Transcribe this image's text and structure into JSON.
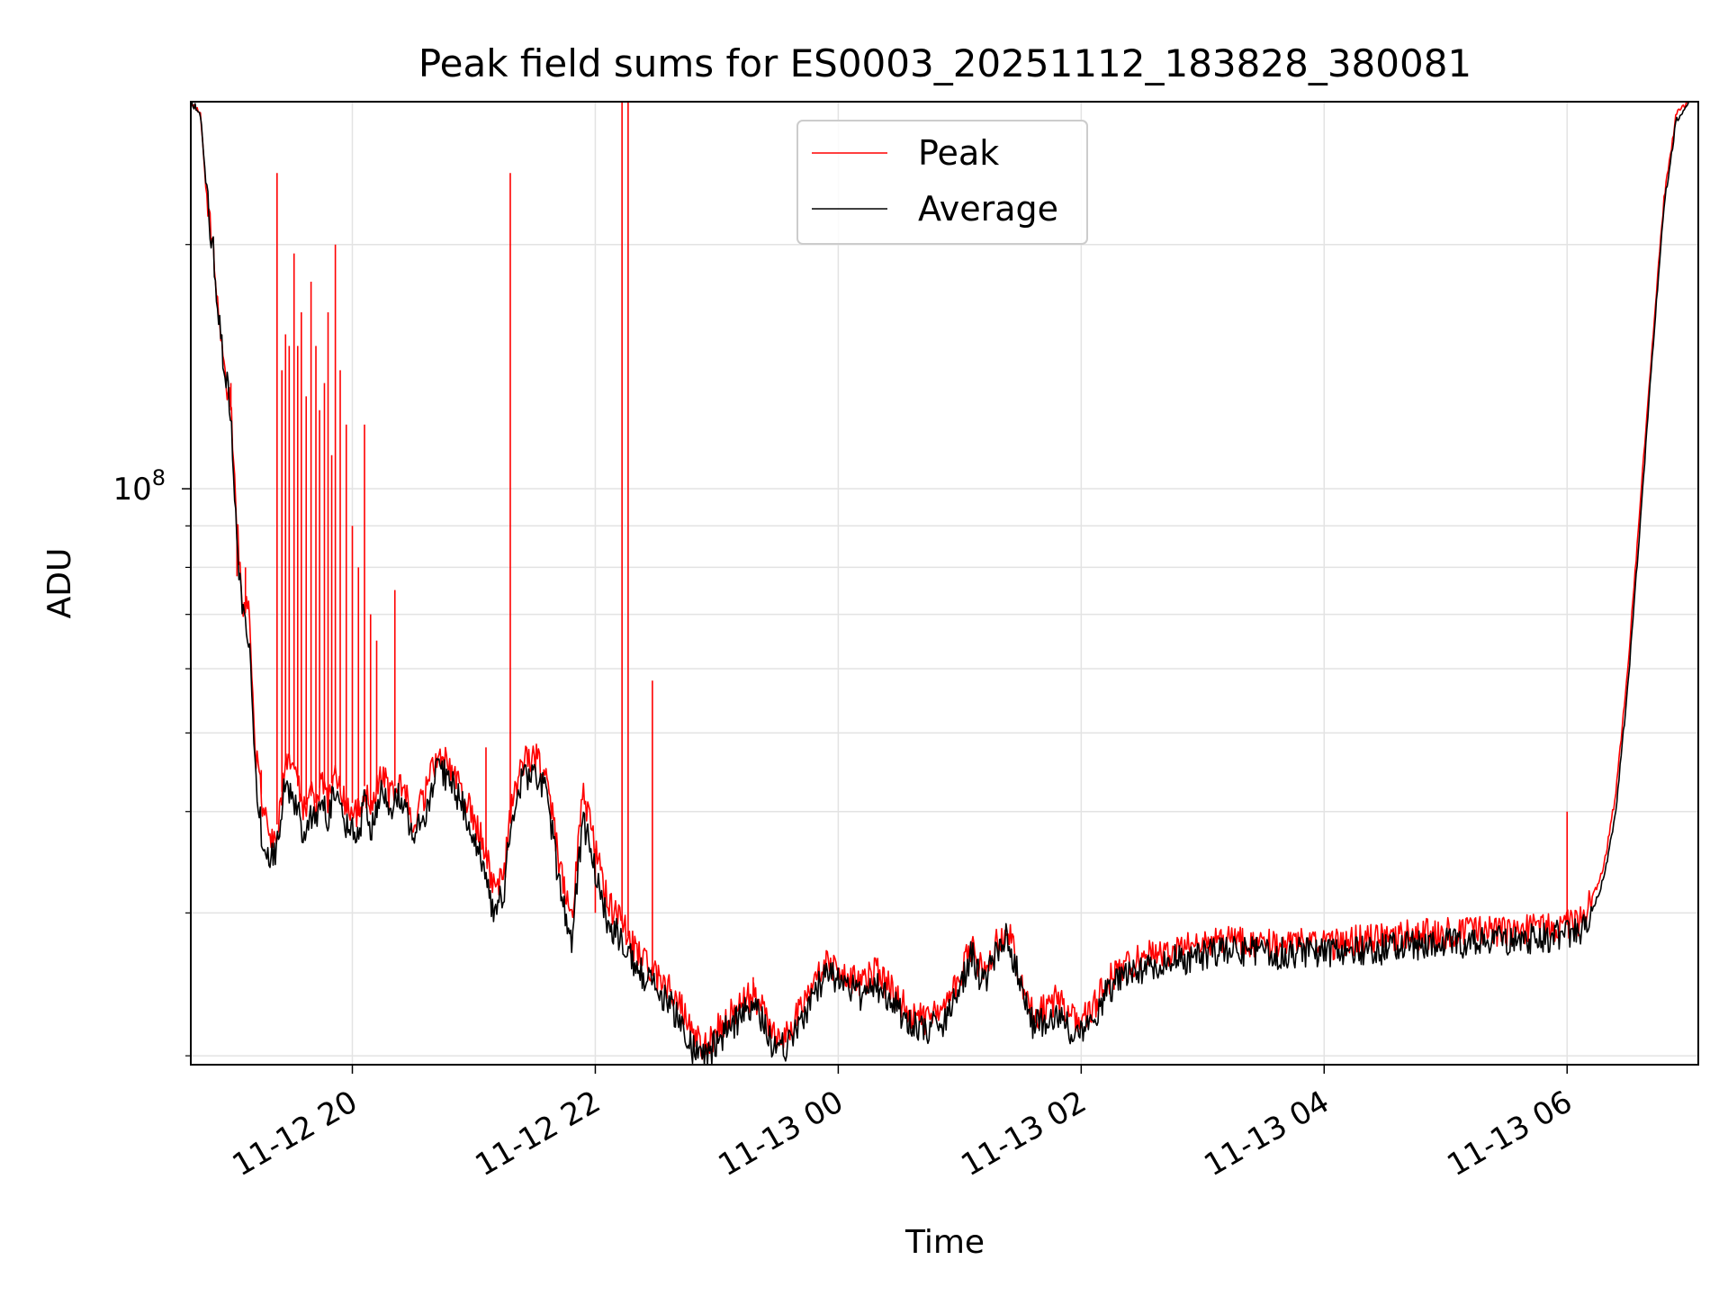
{
  "chart_data": {
    "type": "line",
    "title": "Peak field sums for ES0003_20251112_183828_380081",
    "xlabel": "Time",
    "ylabel": "ADU",
    "yscale": "log",
    "grid": true,
    "legend_position": "top-center",
    "xlim_hours": [
      18.67,
      31.08
    ],
    "ylim": [
      19500000,
      300000000
    ],
    "x_ticks": [
      {
        "hour": 20,
        "label": "11-12 20"
      },
      {
        "hour": 22,
        "label": "11-12 22"
      },
      {
        "hour": 24,
        "label": "11-13 00"
      },
      {
        "hour": 26,
        "label": "11-13 02"
      },
      {
        "hour": 28,
        "label": "11-13 04"
      },
      {
        "hour": 30,
        "label": "11-13 06"
      }
    ],
    "y_major_ticks": [
      {
        "value": 100000000,
        "base": "10",
        "exp": "8"
      }
    ],
    "y_minor_ticks": [
      20000000,
      30000000,
      40000000,
      50000000,
      60000000,
      70000000,
      80000000,
      90000000,
      200000000
    ],
    "series": [
      {
        "name": "Peak",
        "color": "#ff0000",
        "points": [
          [
            18.67,
            300000000
          ],
          [
            18.75,
            290000000
          ],
          [
            18.8,
            230000000
          ],
          [
            18.85,
            200000000
          ],
          [
            18.9,
            160000000
          ],
          [
            18.95,
            140000000
          ],
          [
            19.0,
            125000000
          ],
          [
            19.05,
            90000000
          ],
          [
            19.1,
            72000000
          ],
          [
            19.15,
            70000000
          ],
          [
            19.2,
            48000000
          ],
          [
            19.25,
            42000000
          ],
          [
            19.3,
            38000000
          ],
          [
            19.35,
            36500000
          ],
          [
            19.4,
            40000000
          ],
          [
            19.45,
            46000000
          ],
          [
            19.5,
            47000000
          ],
          [
            19.55,
            43000000
          ],
          [
            19.6,
            40000000
          ],
          [
            19.65,
            42000000
          ],
          [
            19.7,
            41000000
          ],
          [
            19.75,
            44000000
          ],
          [
            19.8,
            41000000
          ],
          [
            19.85,
            45000000
          ],
          [
            19.9,
            43000000
          ],
          [
            19.95,
            40000000
          ],
          [
            20.0,
            41000000
          ],
          [
            20.05,
            39500000
          ],
          [
            20.1,
            43000000
          ],
          [
            20.15,
            40000000
          ],
          [
            20.25,
            45000000
          ],
          [
            20.3,
            42000000
          ],
          [
            20.4,
            44000000
          ],
          [
            20.5,
            39000000
          ],
          [
            20.6,
            42000000
          ],
          [
            20.7,
            47000000
          ],
          [
            20.8,
            46000000
          ],
          [
            20.9,
            43000000
          ],
          [
            21.0,
            39000000
          ],
          [
            21.1,
            36000000
          ],
          [
            21.15,
            32000000
          ],
          [
            21.25,
            33500000
          ],
          [
            21.3,
            40000000
          ],
          [
            21.4,
            46000000
          ],
          [
            21.5,
            47000000
          ],
          [
            21.6,
            44000000
          ],
          [
            21.7,
            35000000
          ],
          [
            21.8,
            29000000
          ],
          [
            21.9,
            42000000
          ],
          [
            22.0,
            36000000
          ],
          [
            22.1,
            31000000
          ],
          [
            22.2,
            29500000
          ],
          [
            22.3,
            27500000
          ],
          [
            22.45,
            25500000
          ],
          [
            22.6,
            24500000
          ],
          [
            22.7,
            23000000
          ],
          [
            22.8,
            21500000
          ],
          [
            22.9,
            20500000
          ],
          [
            23.0,
            21500000
          ],
          [
            23.1,
            22500000
          ],
          [
            23.2,
            23000000
          ],
          [
            23.3,
            24000000
          ],
          [
            23.4,
            22500000
          ],
          [
            23.5,
            21000000
          ],
          [
            23.6,
            21500000
          ],
          [
            23.7,
            23000000
          ],
          [
            23.8,
            24500000
          ],
          [
            23.9,
            26000000
          ],
          [
            24.0,
            25500000
          ],
          [
            24.1,
            25000000
          ],
          [
            24.2,
            24500000
          ],
          [
            24.3,
            25500000
          ],
          [
            24.4,
            24500000
          ],
          [
            24.5,
            23500000
          ],
          [
            24.6,
            22500000
          ],
          [
            24.7,
            22200000
          ],
          [
            24.8,
            22500000
          ],
          [
            24.9,
            23000000
          ],
          [
            25.0,
            25000000
          ],
          [
            25.1,
            27500000
          ],
          [
            25.2,
            25000000
          ],
          [
            25.3,
            27500000
          ],
          [
            25.4,
            29000000
          ],
          [
            25.5,
            25000000
          ],
          [
            25.6,
            22500000
          ],
          [
            25.7,
            22800000
          ],
          [
            25.8,
            23500000
          ],
          [
            25.9,
            22500000
          ],
          [
            26.0,
            22000000
          ],
          [
            26.1,
            23000000
          ],
          [
            26.2,
            24500000
          ],
          [
            26.3,
            25500000
          ],
          [
            26.5,
            26500000
          ],
          [
            26.7,
            27000000
          ],
          [
            26.9,
            27200000
          ],
          [
            27.1,
            27600000
          ],
          [
            27.3,
            27800000
          ],
          [
            27.5,
            27500000
          ],
          [
            27.7,
            27600000
          ],
          [
            27.9,
            27600000
          ],
          [
            28.1,
            27500000
          ],
          [
            28.3,
            27800000
          ],
          [
            28.5,
            27900000
          ],
          [
            28.7,
            28200000
          ],
          [
            28.9,
            28300000
          ],
          [
            29.1,
            28400000
          ],
          [
            29.3,
            28500000
          ],
          [
            29.5,
            28600000
          ],
          [
            29.7,
            28700000
          ],
          [
            29.9,
            28900000
          ],
          [
            30.0,
            29000000
          ],
          [
            30.1,
            29200000
          ],
          [
            30.2,
            31000000
          ],
          [
            30.3,
            34000000
          ],
          [
            30.4,
            42000000
          ],
          [
            30.5,
            60000000
          ],
          [
            30.6,
            95000000
          ],
          [
            30.7,
            150000000
          ],
          [
            30.8,
            230000000
          ],
          [
            30.9,
            290000000
          ],
          [
            31.0,
            300000000
          ]
        ],
        "spikes": [
          [
            19.0,
            135000000
          ],
          [
            19.05,
            78000000
          ],
          [
            19.12,
            80000000
          ],
          [
            19.25,
            45000000
          ],
          [
            19.38,
            245000000
          ],
          [
            19.42,
            140000000
          ],
          [
            19.45,
            155000000
          ],
          [
            19.48,
            150000000
          ],
          [
            19.52,
            195000000
          ],
          [
            19.55,
            150000000
          ],
          [
            19.58,
            165000000
          ],
          [
            19.62,
            130000000
          ],
          [
            19.66,
            180000000
          ],
          [
            19.7,
            150000000
          ],
          [
            19.73,
            125000000
          ],
          [
            19.77,
            135000000
          ],
          [
            19.8,
            165000000
          ],
          [
            19.83,
            110000000
          ],
          [
            19.86,
            200000000
          ],
          [
            19.9,
            140000000
          ],
          [
            19.95,
            120000000
          ],
          [
            20.0,
            90000000
          ],
          [
            20.05,
            80000000
          ],
          [
            20.1,
            120000000
          ],
          [
            20.15,
            70000000
          ],
          [
            20.2,
            65000000
          ],
          [
            20.35,
            75000000
          ],
          [
            21.1,
            48000000
          ],
          [
            21.3,
            245000000
          ],
          [
            22.0,
            30000000
          ],
          [
            22.22,
            320000000
          ],
          [
            22.27,
            320000000
          ],
          [
            22.47,
            58000000
          ],
          [
            23.3,
            25000000
          ],
          [
            26.3,
            26000000
          ],
          [
            30.0,
            40000000
          ]
        ]
      },
      {
        "name": "Average",
        "color": "#000000",
        "points": [
          [
            18.67,
            300000000
          ],
          [
            18.75,
            290000000
          ],
          [
            18.8,
            230000000
          ],
          [
            18.85,
            200000000
          ],
          [
            18.9,
            160000000
          ],
          [
            18.95,
            140000000
          ],
          [
            19.0,
            125000000
          ],
          [
            19.05,
            85000000
          ],
          [
            19.1,
            70000000
          ],
          [
            19.15,
            65000000
          ],
          [
            19.2,
            45000000
          ],
          [
            19.25,
            38000000
          ],
          [
            19.3,
            36000000
          ],
          [
            19.35,
            35000000
          ],
          [
            19.4,
            38000000
          ],
          [
            19.45,
            44000000
          ],
          [
            19.5,
            42000000
          ],
          [
            19.55,
            40000000
          ],
          [
            19.6,
            37000000
          ],
          [
            19.65,
            40000000
          ],
          [
            19.7,
            38500000
          ],
          [
            19.75,
            42000000
          ],
          [
            19.8,
            39000000
          ],
          [
            19.85,
            43000000
          ],
          [
            19.9,
            40000000
          ],
          [
            19.95,
            38500000
          ],
          [
            20.0,
            39000000
          ],
          [
            20.05,
            37000000
          ],
          [
            20.1,
            41000000
          ],
          [
            20.15,
            38000000
          ],
          [
            20.25,
            43000000
          ],
          [
            20.3,
            40000000
          ],
          [
            20.4,
            42000000
          ],
          [
            20.5,
            37000000
          ],
          [
            20.6,
            40000000
          ],
          [
            20.7,
            45000000
          ],
          [
            20.8,
            44000000
          ],
          [
            20.9,
            41000000
          ],
          [
            21.0,
            36500000
          ],
          [
            21.1,
            34000000
          ],
          [
            21.15,
            30000000
          ],
          [
            21.25,
            32000000
          ],
          [
            21.3,
            38000000
          ],
          [
            21.4,
            44000000
          ],
          [
            21.5,
            45000000
          ],
          [
            21.6,
            42000000
          ],
          [
            21.7,
            33000000
          ],
          [
            21.8,
            27500000
          ],
          [
            21.9,
            39000000
          ],
          [
            22.0,
            34000000
          ],
          [
            22.1,
            29500000
          ],
          [
            22.2,
            28000000
          ],
          [
            22.3,
            26500000
          ],
          [
            22.45,
            24500000
          ],
          [
            22.6,
            23500000
          ],
          [
            22.7,
            22000000
          ],
          [
            22.8,
            20500000
          ],
          [
            22.9,
            19800000
          ],
          [
            23.0,
            20800000
          ],
          [
            23.1,
            21800000
          ],
          [
            23.2,
            22300000
          ],
          [
            23.3,
            23200000
          ],
          [
            23.4,
            21600000
          ],
          [
            23.5,
            20200000
          ],
          [
            23.6,
            20800000
          ],
          [
            23.7,
            22300000
          ],
          [
            23.8,
            23800000
          ],
          [
            23.9,
            25200000
          ],
          [
            24.0,
            24700000
          ],
          [
            24.1,
            24200000
          ],
          [
            24.2,
            23700000
          ],
          [
            24.3,
            24700000
          ],
          [
            24.4,
            23700000
          ],
          [
            24.5,
            22700000
          ],
          [
            24.6,
            21800000
          ],
          [
            24.7,
            21500000
          ],
          [
            24.8,
            21800000
          ],
          [
            24.9,
            22300000
          ],
          [
            25.0,
            24200000
          ],
          [
            25.1,
            26800000
          ],
          [
            25.2,
            24300000
          ],
          [
            25.3,
            26800000
          ],
          [
            25.4,
            28200000
          ],
          [
            25.5,
            24300000
          ],
          [
            25.6,
            21800000
          ],
          [
            25.7,
            22000000
          ],
          [
            25.8,
            22700000
          ],
          [
            25.9,
            21700000
          ],
          [
            26.0,
            21300000
          ],
          [
            26.1,
            22200000
          ],
          [
            26.2,
            23700000
          ],
          [
            26.3,
            24700000
          ],
          [
            26.5,
            25700000
          ],
          [
            26.7,
            26200000
          ],
          [
            26.9,
            26400000
          ],
          [
            27.1,
            26800000
          ],
          [
            27.3,
            27000000
          ],
          [
            27.5,
            26700000
          ],
          [
            27.7,
            26800000
          ],
          [
            27.9,
            26800000
          ],
          [
            28.1,
            26700000
          ],
          [
            28.3,
            27000000
          ],
          [
            28.5,
            27100000
          ],
          [
            28.7,
            27400000
          ],
          [
            28.9,
            27500000
          ],
          [
            29.1,
            27600000
          ],
          [
            29.3,
            27700000
          ],
          [
            29.5,
            27800000
          ],
          [
            29.7,
            27900000
          ],
          [
            29.9,
            28100000
          ],
          [
            30.0,
            28200000
          ],
          [
            30.1,
            28400000
          ],
          [
            30.2,
            30000000
          ],
          [
            30.3,
            33000000
          ],
          [
            30.4,
            40000000
          ],
          [
            30.5,
            57000000
          ],
          [
            30.6,
            90000000
          ],
          [
            30.7,
            145000000
          ],
          [
            30.8,
            225000000
          ],
          [
            30.9,
            285000000
          ],
          [
            31.0,
            300000000
          ]
        ]
      }
    ]
  }
}
